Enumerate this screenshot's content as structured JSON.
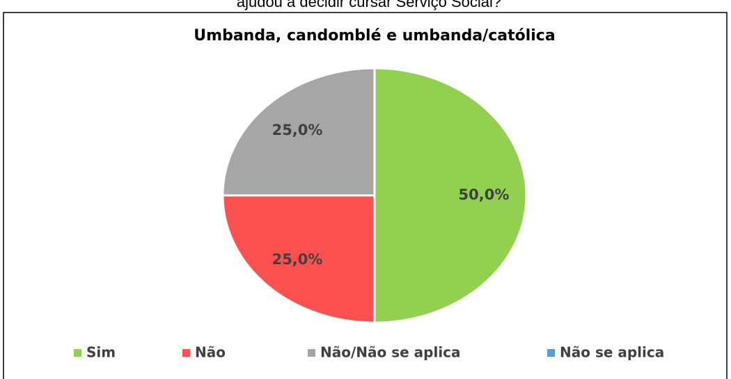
{
  "header_text": "ajudou a decidir cursar Serviço Social?",
  "chart_data": {
    "type": "pie",
    "title": "Umbanda, candomblé e umbanda/católica",
    "categories": [
      "Sim",
      "Não",
      "Não/Não se aplica",
      "Não se aplica"
    ],
    "values": [
      50,
      25,
      25,
      0
    ],
    "value_labels": [
      "50,0%",
      "25,0%",
      "25,0%",
      null
    ],
    "colors": [
      "#92d050",
      "#ff5050",
      "#a6a6a6",
      "#5b9bd5"
    ],
    "legend": "bottom"
  }
}
